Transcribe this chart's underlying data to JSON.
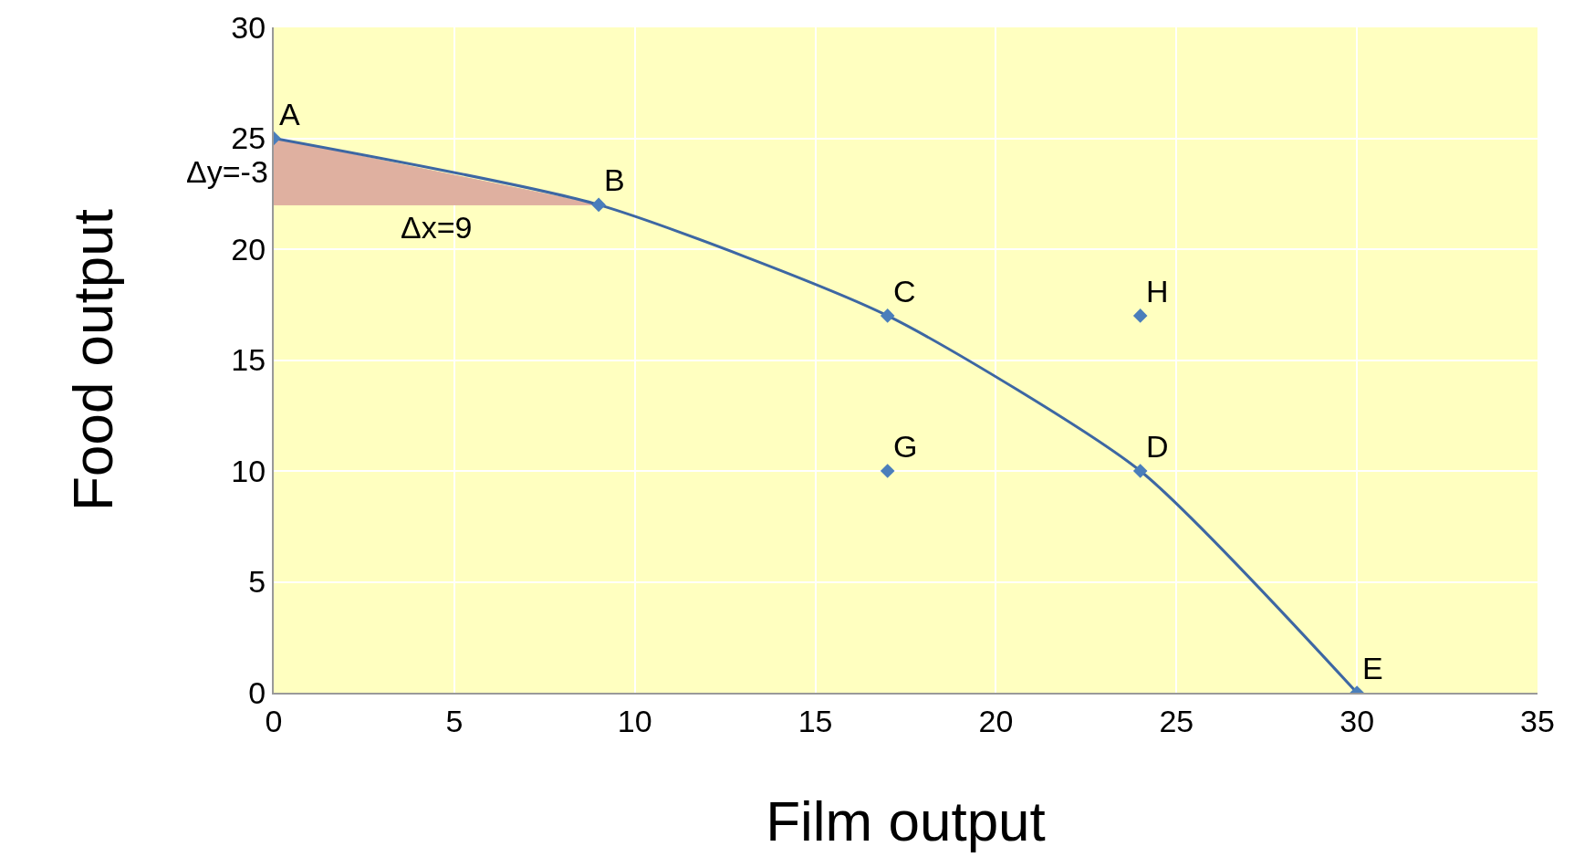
{
  "chart_data": {
    "type": "line",
    "xlabel": "Film output",
    "ylabel": "Food output",
    "xlim": [
      0,
      35
    ],
    "ylim": [
      0,
      30
    ],
    "xticks": [
      0,
      5,
      10,
      15,
      20,
      25,
      30,
      35
    ],
    "yticks": [
      0,
      5,
      10,
      15,
      20,
      25,
      30
    ],
    "grid": true,
    "marker": "diamond",
    "line_style": "solid",
    "series": [
      {
        "type": "area",
        "color": "#dfb0a0",
        "x": [
          0,
          0,
          9,
          0
        ],
        "values": [
          25,
          22,
          22,
          25
        ]
      },
      {
        "color": "#3d67a3",
        "x": [
          0,
          9,
          17,
          24,
          30
        ],
        "values": [
          25,
          22,
          17,
          10,
          0
        ]
      },
      {
        "type": "scatter",
        "color": "#4a7ebb",
        "x": [
          17,
          24
        ],
        "values": [
          10,
          17
        ]
      }
    ],
    "annotations": [
      {
        "text": "A",
        "x": 0,
        "y": 25
      },
      {
        "text": "B",
        "x": 9,
        "y": 22
      },
      {
        "text": "C",
        "x": 17,
        "y": 17
      },
      {
        "text": "D",
        "x": 24,
        "y": 10
      },
      {
        "text": "E",
        "x": 30,
        "y": 0
      },
      {
        "text": "G",
        "x": 17,
        "y": 10
      },
      {
        "text": "H",
        "x": 24,
        "y": 17
      },
      {
        "text": "Δy=-3",
        "x": 0,
        "y": 23.5
      },
      {
        "text": "Δx=9",
        "x": 4.5,
        "y": 22
      }
    ]
  }
}
